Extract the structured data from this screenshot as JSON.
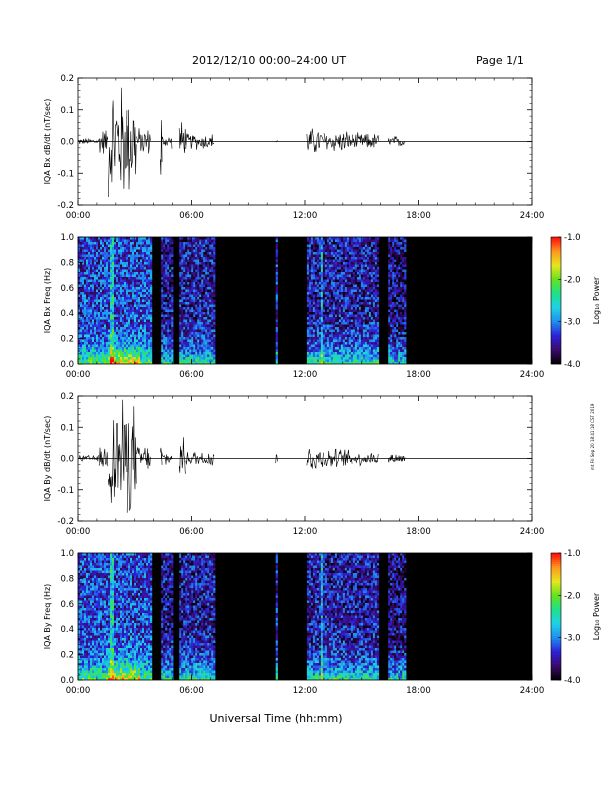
{
  "header": {
    "title": "2012/12/10   00:00–24:00 UT",
    "page": "Page 1/1"
  },
  "footer": {
    "xlabel": "Universal Time (hh:mm)",
    "stamp": "mt Fri Sep 20 18:41:18 CST 2019"
  },
  "colors": {
    "background": "#000000",
    "trace": "#000000",
    "colormap": [
      "#000000",
      "#3a0a6a",
      "#2d1fd6",
      "#1e8cf0",
      "#1ed2e6",
      "#1ee08a",
      "#64e21e",
      "#e6e61e",
      "#ff961e",
      "#ff0a0a"
    ]
  },
  "chart_data": [
    {
      "type": "line",
      "ylabel": "IQA Bx dB/dt (nT/sec)",
      "xlim": [
        0,
        24
      ],
      "ylim": [
        -0.2,
        0.2
      ],
      "x_ticks": [
        "00:00",
        "06:00",
        "12:00",
        "18:00",
        "24:00"
      ],
      "y_ticks": [
        "-0.2",
        "-0.1",
        "0.0",
        "0.1",
        "0.2"
      ],
      "data_segments": [
        {
          "start": 0.0,
          "end": 1.1,
          "amplitude": 0.012
        },
        {
          "start": 1.1,
          "end": 1.6,
          "amplitude": 0.05
        },
        {
          "start": 1.6,
          "end": 2.6,
          "amplitude": 0.22
        },
        {
          "start": 2.6,
          "end": 3.1,
          "amplitude": 0.2
        },
        {
          "start": 3.1,
          "end": 3.85,
          "amplitude": 0.05
        },
        {
          "start": 4.35,
          "end": 4.45,
          "amplitude": 0.2
        },
        {
          "start": 4.4,
          "end": 5.0,
          "amplitude": 0.025
        },
        {
          "start": 5.35,
          "end": 5.7,
          "amplitude": 0.08
        },
        {
          "start": 5.7,
          "end": 7.2,
          "amplitude": 0.03
        },
        {
          "start": 10.45,
          "end": 10.55,
          "amplitude": 0.03
        },
        {
          "start": 12.1,
          "end": 13.0,
          "amplitude": 0.05
        },
        {
          "start": 13.0,
          "end": 14.5,
          "amplitude": 0.04
        },
        {
          "start": 14.5,
          "end": 15.9,
          "amplitude": 0.03
        },
        {
          "start": 16.4,
          "end": 17.3,
          "amplitude": 0.02
        }
      ]
    },
    {
      "type": "heatmap",
      "ylabel": "IQA Bx Freq (Hz)",
      "xlim": [
        0,
        24
      ],
      "ylim": [
        0,
        1.0
      ],
      "x_ticks": [
        "00:00",
        "06:00",
        "12:00",
        "18:00",
        "24:00"
      ],
      "y_ticks": [
        "0.0",
        "0.2",
        "0.4",
        "0.6",
        "0.8",
        "1.0"
      ],
      "colorbar": {
        "label": "Log₁₀ Power",
        "range": [
          -4.0,
          -1.0
        ],
        "ticks": [
          "-4.0",
          "-3.0",
          "-2.0",
          "-1.0"
        ]
      },
      "data_segments": [
        {
          "start": 0.0,
          "end": 3.85,
          "intensity": 0.55
        },
        {
          "start": 4.4,
          "end": 5.0,
          "intensity": 0.35
        },
        {
          "start": 5.35,
          "end": 7.2,
          "intensity": 0.4
        },
        {
          "start": 10.45,
          "end": 10.55,
          "intensity": 0.5
        },
        {
          "start": 12.1,
          "end": 15.9,
          "intensity": 0.4
        },
        {
          "start": 16.4,
          "end": 17.3,
          "intensity": 0.3
        }
      ]
    },
    {
      "type": "line",
      "ylabel": "IQA By dB/dt (nT/sec)",
      "xlim": [
        0,
        24
      ],
      "ylim": [
        -0.2,
        0.2
      ],
      "x_ticks": [
        "00:00",
        "06:00",
        "12:00",
        "18:00",
        "24:00"
      ],
      "y_ticks": [
        "-0.2",
        "-0.1",
        "0.0",
        "0.1",
        "0.2"
      ],
      "data_segments": [
        {
          "start": 0.0,
          "end": 1.1,
          "amplitude": 0.012
        },
        {
          "start": 1.1,
          "end": 1.6,
          "amplitude": 0.05
        },
        {
          "start": 1.6,
          "end": 2.6,
          "amplitude": 0.22
        },
        {
          "start": 2.6,
          "end": 3.1,
          "amplitude": 0.2
        },
        {
          "start": 3.1,
          "end": 3.85,
          "amplitude": 0.05
        },
        {
          "start": 4.35,
          "end": 4.45,
          "amplitude": 0.07
        },
        {
          "start": 4.4,
          "end": 5.0,
          "amplitude": 0.03
        },
        {
          "start": 5.35,
          "end": 5.7,
          "amplitude": 0.07
        },
        {
          "start": 5.7,
          "end": 7.2,
          "amplitude": 0.03
        },
        {
          "start": 10.45,
          "end": 10.55,
          "amplitude": 0.03
        },
        {
          "start": 12.1,
          "end": 13.0,
          "amplitude": 0.05
        },
        {
          "start": 13.0,
          "end": 14.5,
          "amplitude": 0.035
        },
        {
          "start": 14.5,
          "end": 15.9,
          "amplitude": 0.025
        },
        {
          "start": 16.4,
          "end": 17.3,
          "amplitude": 0.02
        }
      ]
    },
    {
      "type": "heatmap",
      "ylabel": "IQA By Freq (Hz)",
      "xlim": [
        0,
        24
      ],
      "ylim": [
        0,
        1.0
      ],
      "x_ticks": [
        "00:00",
        "06:00",
        "12:00",
        "18:00",
        "24:00"
      ],
      "y_ticks": [
        "0.0",
        "0.2",
        "0.4",
        "0.6",
        "0.8",
        "1.0"
      ],
      "colorbar": {
        "label": "Log₁₀ Power",
        "range": [
          -4.0,
          -1.0
        ],
        "ticks": [
          "-4.0",
          "-3.0",
          "-2.0",
          "-1.0"
        ]
      },
      "data_segments": [
        {
          "start": 0.0,
          "end": 3.85,
          "intensity": 0.55
        },
        {
          "start": 4.4,
          "end": 5.0,
          "intensity": 0.35
        },
        {
          "start": 5.35,
          "end": 7.2,
          "intensity": 0.4
        },
        {
          "start": 10.45,
          "end": 10.55,
          "intensity": 0.5
        },
        {
          "start": 12.1,
          "end": 15.9,
          "intensity": 0.4
        },
        {
          "start": 16.4,
          "end": 17.3,
          "intensity": 0.3
        }
      ]
    }
  ]
}
